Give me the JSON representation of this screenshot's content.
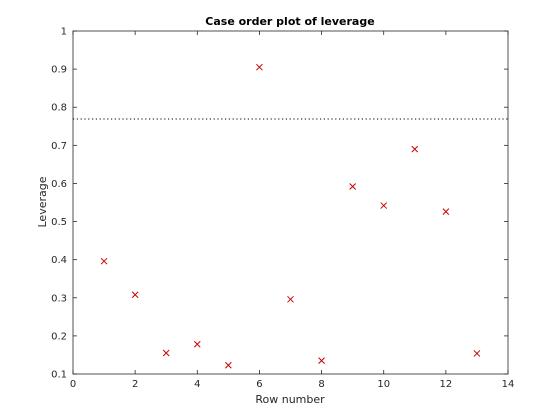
{
  "chart_data": {
    "type": "scatter",
    "title": "Case order plot of leverage",
    "xlabel": "Row number",
    "ylabel": "Leverage",
    "xlim": [
      0,
      14
    ],
    "ylim": [
      0.1,
      1
    ],
    "xticks": [
      0,
      2,
      4,
      6,
      8,
      10,
      12,
      14
    ],
    "xtick_labels": [
      "0",
      "2",
      "4",
      "6",
      "8",
      "10",
      "12",
      "14"
    ],
    "yticks": [
      0.1,
      0.2,
      0.3,
      0.4,
      0.5,
      0.6,
      0.7,
      0.8,
      0.9,
      1
    ],
    "ytick_labels": [
      "0.1",
      "0.2",
      "0.3",
      "0.4",
      "0.5",
      "0.6",
      "0.7",
      "0.8",
      "0.9",
      "1"
    ],
    "grid": false,
    "marker": "x",
    "marker_color": "#cc0000",
    "reference_line": {
      "y": 0.769,
      "style": "dotted",
      "color": "#000000"
    },
    "x": [
      1,
      2,
      3,
      4,
      5,
      6,
      7,
      8,
      9,
      10,
      11,
      12,
      13
    ],
    "y": [
      0.396,
      0.308,
      0.155,
      0.178,
      0.123,
      0.905,
      0.296,
      0.135,
      0.592,
      0.542,
      0.69,
      0.526,
      0.154
    ]
  }
}
